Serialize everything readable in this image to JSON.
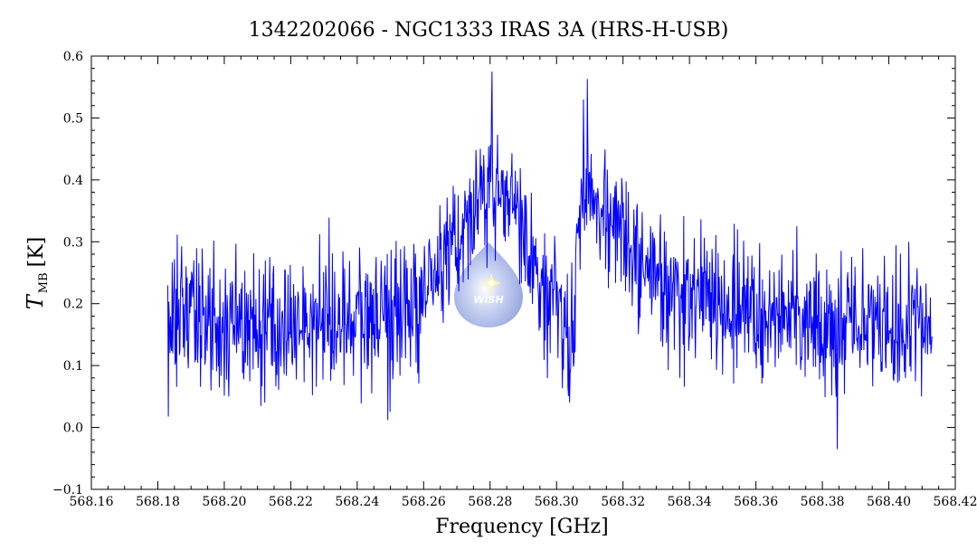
{
  "chart_data": {
    "type": "line",
    "title": "1342202066 - NGC1333 IRAS 3A (HRS-H-USB)",
    "xlabel": "Frequency [GHz]",
    "ylabel": {
      "symbol": "T",
      "subscript": "MB",
      "unit": "[K]"
    },
    "xlim": [
      568.16,
      568.42
    ],
    "ylim": [
      -0.1,
      0.6
    ],
    "x_ticks": [
      "568.16",
      "568.18",
      "568.20",
      "568.22",
      "568.24",
      "568.26",
      "568.28",
      "568.30",
      "568.32",
      "568.34",
      "568.36",
      "568.38",
      "568.40",
      "568.42"
    ],
    "y_ticks": [
      "−0.1",
      "0.0",
      "0.1",
      "0.2",
      "0.3",
      "0.4",
      "0.5",
      "0.6"
    ],
    "grid": false,
    "series": [
      {
        "color": "#0000ff",
        "x_range": [
          568.183,
          568.413
        ],
        "profile_points": [
          [
            568.183,
            0.18
          ],
          [
            568.2,
            0.17
          ],
          [
            568.22,
            0.16
          ],
          [
            568.24,
            0.17
          ],
          [
            568.255,
            0.2
          ],
          [
            568.265,
            0.25
          ],
          [
            568.275,
            0.35
          ],
          [
            568.28,
            0.38
          ],
          [
            568.285,
            0.37
          ],
          [
            568.29,
            0.31
          ],
          [
            568.295,
            0.23
          ],
          [
            568.3,
            0.2
          ],
          [
            568.303,
            0.1
          ],
          [
            568.306,
            0.25
          ],
          [
            568.308,
            0.4
          ],
          [
            568.312,
            0.38
          ],
          [
            568.32,
            0.31
          ],
          [
            568.33,
            0.25
          ],
          [
            568.34,
            0.21
          ],
          [
            568.36,
            0.18
          ],
          [
            568.38,
            0.17
          ],
          [
            568.413,
            0.17
          ]
        ],
        "peak_max": 0.575,
        "peak_max_x": 568.2805,
        "second_peak": 0.563,
        "second_peak_x": 568.3092,
        "min_value": -0.035,
        "min_value_x": 568.3845,
        "noise_rms": 0.055
      }
    ]
  },
  "watermark": {
    "text": "WISH",
    "color": "#8a9fe0"
  }
}
